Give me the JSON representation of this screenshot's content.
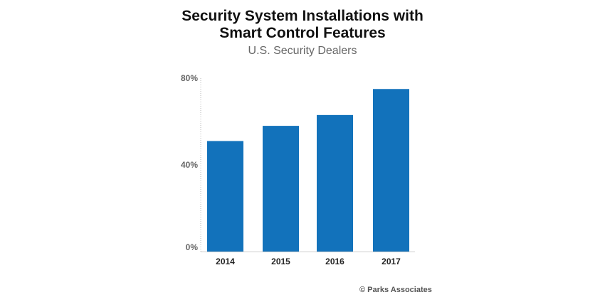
{
  "chart_data": {
    "type": "bar",
    "title_line1": "Security System Installations with",
    "title_line2": "Smart Control Features",
    "subtitle": "U.S. Security Dealers",
    "categories": [
      "2014",
      "2015",
      "2016",
      "2017"
    ],
    "values": [
      51,
      58,
      63,
      75
    ],
    "unit": "%",
    "ylim": [
      0,
      80
    ],
    "yticks": [
      "0%",
      "40%",
      "80%"
    ],
    "ytick_values": [
      0,
      40,
      80
    ],
    "xlabel": "",
    "ylabel": "",
    "grid": false,
    "bar_color": "#1272bb",
    "credit": "© Parks Associates"
  }
}
